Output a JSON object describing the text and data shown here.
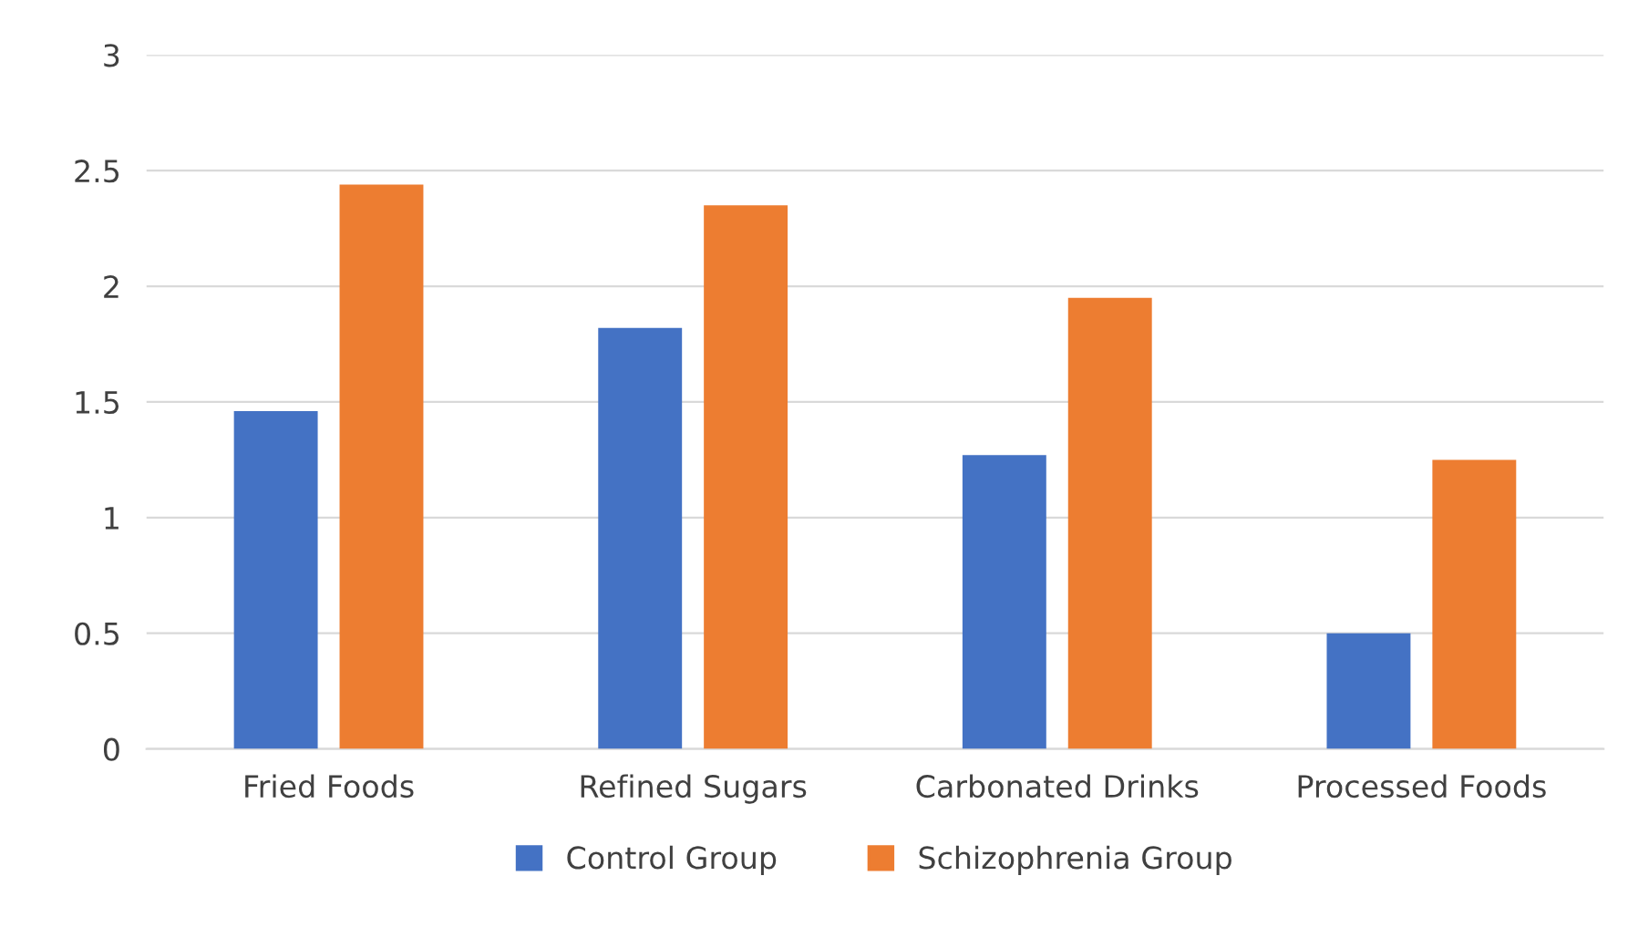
{
  "chart_data": {
    "type": "bar",
    "categories": [
      "Fried Foods",
      "Refined Sugars",
      "Carbonated Drinks",
      "Processed Foods"
    ],
    "series": [
      {
        "name": "Control Group",
        "color": "#4472c4",
        "values": [
          1.46,
          1.82,
          1.27,
          0.5
        ]
      },
      {
        "name": "Schizophrenia Group",
        "color": "#ed7d31",
        "values": [
          2.44,
          2.35,
          1.95,
          1.25
        ]
      }
    ],
    "ylim": [
      0,
      3
    ],
    "yticks": [
      0,
      0.5,
      1,
      1.5,
      2,
      2.5,
      3
    ],
    "grid": "y",
    "legend": "bottom"
  }
}
